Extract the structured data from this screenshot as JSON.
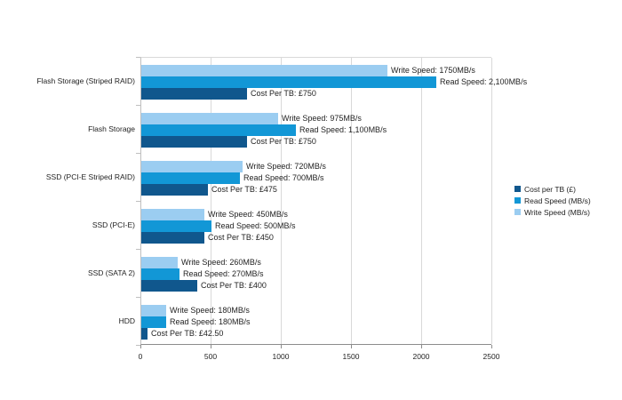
{
  "chart_data": {
    "type": "bar",
    "orientation": "horizontal",
    "categories": [
      "Flash Storage (Striped RAID)",
      "Flash Storage",
      "SSD (PCI-E Striped RAID)",
      "SSD (PCI-E)",
      "SSD (SATA 2)",
      "HDD"
    ],
    "series": [
      {
        "name": "Cost per TB (£)",
        "color": "#10578d",
        "values": [
          750,
          750,
          475,
          450,
          400,
          42.5
        ],
        "labels": [
          "Cost Per TB: £750",
          "Cost Per TB: £750",
          "Cost Per TB: £475",
          "Cost Per TB: £450",
          "Cost Per TB: £400",
          "Cost Per TB: £42.50"
        ]
      },
      {
        "name": "Read Speed (MB/s)",
        "color": "#1297d6",
        "values": [
          2100,
          1100,
          700,
          500,
          270,
          180
        ],
        "labels": [
          "Read Speed: 2,100MB/s",
          "Read Speed: 1,100MB/s",
          "Read Speed: 700MB/s",
          "Read Speed: 500MB/s",
          "Read Speed: 270MB/s",
          "Read Speed: 180MB/s"
        ]
      },
      {
        "name": "Write Speed (MB/s)",
        "color": "#9bcdf1",
        "values": [
          1750,
          975,
          720,
          450,
          260,
          180
        ],
        "labels": [
          "Write Speed: 1750MB/s",
          "Write Speed: 975MB/s",
          "Write Speed: 720MB/s",
          "Write Speed: 450MB/s",
          "Write Speed: 260MB/s",
          "Write Speed: 180MB/s"
        ]
      }
    ],
    "xlim": [
      0,
      2500
    ],
    "x_ticks": [
      0,
      500,
      1000,
      1500,
      2000,
      2500
    ],
    "legend_position": "right",
    "grid": "vertical",
    "axis_note": "series drawn top-to-bottom per category: Write Speed, Read Speed, Cost per TB"
  },
  "colors": {
    "gridline": "#d9d9d9",
    "x_axis": "#8c8c8c",
    "text": "#1f1f1f",
    "background": "#ffffff"
  }
}
